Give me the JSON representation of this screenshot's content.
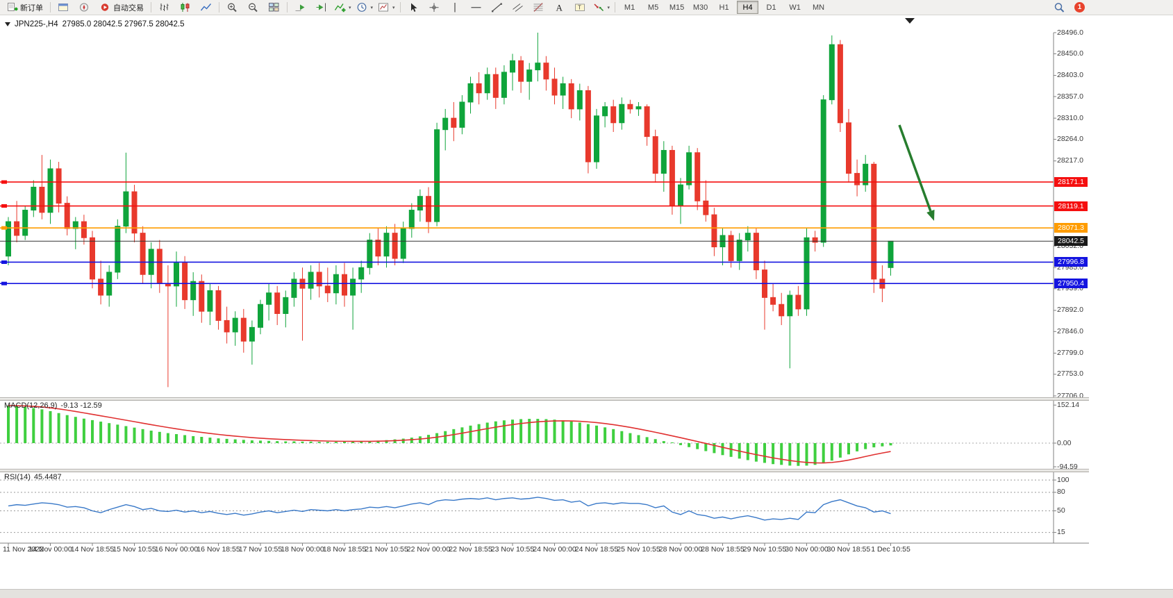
{
  "toolbar": {
    "items": [
      {
        "name": "new-order-button",
        "icon": "new-order-icon",
        "label": "新订单"
      },
      {
        "sep": true
      },
      {
        "name": "market-watch-button",
        "icon": "chart-window-icon"
      },
      {
        "name": "navigator-button",
        "icon": "navigator-icon"
      },
      {
        "name": "auto-trading-button",
        "icon": "auto-trading-icon",
        "label": "自动交易"
      },
      {
        "sep": true
      },
      {
        "name": "bar-chart-button",
        "icon": "bar-chart-icon"
      },
      {
        "name": "candlestick-chart-button",
        "icon": "candlestick-icon"
      },
      {
        "name": "line-chart-button",
        "icon": "line-chart-icon"
      },
      {
        "sep": true
      },
      {
        "name": "zoom-in-button",
        "icon": "zoom-in-icon"
      },
      {
        "name": "zoom-out-button",
        "icon": "zoom-out-icon"
      },
      {
        "name": "tile-windows-button",
        "icon": "tile-windows-icon"
      },
      {
        "sep": true
      },
      {
        "name": "auto-scroll-button",
        "icon": "auto-scroll-icon"
      },
      {
        "name": "chart-shift-button",
        "icon": "chart-shift-icon"
      },
      {
        "name": "indicators-button",
        "icon": "indicators-icon",
        "caret": true
      },
      {
        "name": "periods-button",
        "icon": "periods-icon",
        "caret": true
      },
      {
        "name": "templates-button",
        "icon": "templates-icon",
        "caret": true
      },
      {
        "sep": true
      },
      {
        "name": "cursor-button",
        "icon": "cursor-icon"
      },
      {
        "name": "crosshair-button",
        "icon": "crosshair-icon"
      },
      {
        "name": "vertical-line-button",
        "icon": "vertical-line-icon"
      },
      {
        "name": "horizontal-line-button",
        "icon": "horizontal-line-icon"
      },
      {
        "name": "trendline-button",
        "icon": "trendline-icon"
      },
      {
        "name": "channel-button",
        "icon": "channel-icon"
      },
      {
        "name": "fibonacci-button",
        "icon": "fibonacci-icon"
      },
      {
        "name": "text-button",
        "icon": "text-icon"
      },
      {
        "name": "text-label-button",
        "icon": "text-label-icon"
      },
      {
        "name": "shapes-button",
        "icon": "shapes-icon",
        "caret": true
      },
      {
        "sep": true
      }
    ],
    "timeframes": [
      "M1",
      "M5",
      "M15",
      "M30",
      "H1",
      "H4",
      "D1",
      "W1",
      "MN"
    ],
    "active_timeframe": "H4",
    "badge": "1"
  },
  "chart": {
    "symbol_title": "JPN225-,H4",
    "ohlc_text": "27985.0 28042.5 27967.5 28042.5"
  },
  "levels": [
    {
      "label": "28171.1",
      "price": 28171.1,
      "color": "#f50f0f"
    },
    {
      "label": "28119.1",
      "price": 28119.1,
      "color": "#f50f0f"
    },
    {
      "label": "28071.3",
      "price": 28071.3,
      "color": "#ff9c00"
    },
    {
      "label": "27996.8",
      "price": 27996.8,
      "color": "#1414e0"
    },
    {
      "label": "27950.4",
      "price": 27950.4,
      "color": "#1414e0"
    }
  ],
  "current_price": {
    "label": "28042.5",
    "price": 28042.5,
    "color": "#1a1a1a"
  },
  "price_axis": {
    "labels": [
      "28496.0",
      "28450.0",
      "28403.0",
      "28357.0",
      "28310.0",
      "28264.0",
      "28217.0",
      "28032.0",
      "27985.0",
      "27939.0",
      "27892.0",
      "27846.0",
      "27799.0",
      "27753.0",
      "27706.0"
    ]
  },
  "macd_panel": {
    "title": "MACD(12,26,9)",
    "values": "-9.13 -12.59",
    "axis": [
      {
        "text": "152.14",
        "value": 152.14
      },
      {
        "text": "0.00",
        "value": 0
      },
      {
        "text": "-94.59",
        "value": -94.59
      }
    ]
  },
  "rsi_panel": {
    "title": "RSI(14)",
    "value": "45.4487",
    "axis": [
      {
        "text": "100",
        "value": 100
      },
      {
        "text": "80",
        "value": 80
      },
      {
        "text": "50",
        "value": 50
      },
      {
        "text": "15",
        "value": 15
      }
    ],
    "levels": [
      100,
      80,
      50,
      15
    ]
  },
  "time_axis": {
    "labels": [
      "11 Nov 2022",
      "14 Nov 00:00",
      "14 Nov 18:55",
      "15 Nov 10:55",
      "16 Nov 00:00",
      "16 Nov 18:55",
      "17 Nov 10:55",
      "18 Nov 00:00",
      "18 Nov 18:55",
      "21 Nov 10:55",
      "22 Nov 00:00",
      "22 Nov 18:55",
      "23 Nov 10:55",
      "24 Nov 00:00",
      "24 Nov 18:55",
      "25 Nov 10:55",
      "28 Nov 00:00",
      "28 Nov 18:55",
      "29 Nov 10:55",
      "30 Nov 00:00",
      "30 Nov 18:55",
      "1 Dec 10:55"
    ]
  },
  "annotation_arrow": {
    "color": "#277d2e",
    "from": [
      1295,
      158
    ],
    "to": [
      1345,
      296
    ]
  },
  "colors": {
    "bull": "#0fa43b",
    "bear": "#e8392c",
    "macd_hist": "#3fcf3f",
    "macd_signal": "#e03030",
    "rsi": "#3878c8",
    "axis_line": "#808080",
    "current_line": "#333333"
  },
  "chart_data": {
    "type": "candlestick",
    "symbol": "JPN225-",
    "timeframe": "H4",
    "price_range": [
      27706.0,
      28496.0
    ],
    "candles_ohlc": [
      [
        28010,
        28095,
        27990,
        28085
      ],
      [
        28085,
        28130,
        28040,
        28055
      ],
      [
        28055,
        28120,
        28045,
        28110
      ],
      [
        28110,
        28175,
        28095,
        28160
      ],
      [
        28160,
        28230,
        28090,
        28105
      ],
      [
        28105,
        28220,
        28080,
        28200
      ],
      [
        28200,
        28215,
        28105,
        28125
      ],
      [
        28125,
        28140,
        28055,
        28070
      ],
      [
        28070,
        28095,
        28025,
        28085
      ],
      [
        28085,
        28100,
        28035,
        28050
      ],
      [
        28050,
        28065,
        27940,
        27960
      ],
      [
        27960,
        28000,
        27905,
        27925
      ],
      [
        27925,
        27990,
        27900,
        27975
      ],
      [
        27975,
        28090,
        27960,
        28075
      ],
      [
        28075,
        28235,
        28060,
        28150
      ],
      [
        28150,
        28165,
        28040,
        28060
      ],
      [
        28060,
        28075,
        27950,
        27970
      ],
      [
        27970,
        28040,
        27940,
        28025
      ],
      [
        28025,
        28045,
        27930,
        27950
      ],
      [
        27950,
        27990,
        27725,
        27945
      ],
      [
        27945,
        28020,
        27900,
        27995
      ],
      [
        27995,
        28010,
        27895,
        27915
      ],
      [
        27915,
        27975,
        27880,
        27955
      ],
      [
        27955,
        27970,
        27865,
        27890
      ],
      [
        27890,
        27950,
        27860,
        27935
      ],
      [
        27935,
        27945,
        27850,
        27870
      ],
      [
        27870,
        27900,
        27820,
        27845
      ],
      [
        27845,
        27890,
        27815,
        27875
      ],
      [
        27875,
        27895,
        27800,
        27825
      ],
      [
        27825,
        27870,
        27774,
        27855
      ],
      [
        27855,
        27915,
        27840,
        27905
      ],
      [
        27905,
        27950,
        27870,
        27930
      ],
      [
        27930,
        27945,
        27860,
        27885
      ],
      [
        27885,
        27935,
        27855,
        27920
      ],
      [
        27920,
        27975,
        27900,
        27960
      ],
      [
        27960,
        27985,
        27826,
        27940
      ],
      [
        27940,
        27990,
        27915,
        27975
      ],
      [
        27975,
        27995,
        27920,
        27945
      ],
      [
        27945,
        27985,
        27910,
        27930
      ],
      [
        27930,
        27990,
        27905,
        27970
      ],
      [
        27970,
        27995,
        27900,
        27925
      ],
      [
        27925,
        27985,
        27850,
        27960
      ],
      [
        27960,
        28000,
        27930,
        27985
      ],
      [
        27985,
        28060,
        27970,
        28045
      ],
      [
        28045,
        28070,
        27990,
        28010
      ],
      [
        28010,
        28075,
        27985,
        28060
      ],
      [
        28060,
        28080,
        27990,
        28005
      ],
      [
        28005,
        28085,
        27995,
        28070
      ],
      [
        28070,
        28125,
        28050,
        28110
      ],
      [
        28110,
        28155,
        28085,
        28140
      ],
      [
        28140,
        28160,
        28060,
        28085
      ],
      [
        28085,
        28300,
        28075,
        28285
      ],
      [
        28285,
        28330,
        28240,
        28310
      ],
      [
        28310,
        28345,
        28260,
        28290
      ],
      [
        28290,
        28360,
        28275,
        28345
      ],
      [
        28345,
        28400,
        28320,
        28385
      ],
      [
        28385,
        28410,
        28340,
        28365
      ],
      [
        28365,
        28420,
        28350,
        28405
      ],
      [
        28405,
        28420,
        28330,
        28355
      ],
      [
        28355,
        28425,
        28340,
        28410
      ],
      [
        28410,
        28450,
        28370,
        28435
      ],
      [
        28435,
        28445,
        28365,
        28390
      ],
      [
        28390,
        28430,
        28350,
        28415
      ],
      [
        28415,
        28496,
        28390,
        28430
      ],
      [
        28430,
        28445,
        28370,
        28395
      ],
      [
        28395,
        28420,
        28340,
        28360
      ],
      [
        28360,
        28400,
        28330,
        28385
      ],
      [
        28385,
        28395,
        28310,
        28330
      ],
      [
        28330,
        28385,
        28305,
        28370
      ],
      [
        28370,
        28380,
        28190,
        28215
      ],
      [
        28215,
        28330,
        28200,
        28315
      ],
      [
        28315,
        28345,
        28290,
        28335
      ],
      [
        28335,
        28350,
        28280,
        28300
      ],
      [
        28300,
        28355,
        28285,
        28340
      ],
      [
        28340,
        28350,
        28320,
        28330
      ],
      [
        28330,
        28345,
        28315,
        28335
      ],
      [
        28335,
        28340,
        28250,
        28270
      ],
      [
        28270,
        28285,
        28170,
        28190
      ],
      [
        28190,
        28260,
        28150,
        28240
      ],
      [
        28240,
        28250,
        28100,
        28120
      ],
      [
        28120,
        28180,
        28080,
        28165
      ],
      [
        28165,
        28250,
        28155,
        28235
      ],
      [
        28235,
        28245,
        28110,
        28130
      ],
      [
        28130,
        28175,
        28085,
        28100
      ],
      [
        28100,
        28115,
        28010,
        28030
      ],
      [
        28030,
        28070,
        27990,
        28055
      ],
      [
        28055,
        28065,
        27985,
        28000
      ],
      [
        28000,
        28060,
        27980,
        28045
      ],
      [
        28045,
        28075,
        28020,
        28060
      ],
      [
        28060,
        28070,
        27960,
        27980
      ],
      [
        27980,
        28000,
        27850,
        27920
      ],
      [
        27920,
        27950,
        27890,
        27905
      ],
      [
        27905,
        27930,
        27860,
        27880
      ],
      [
        27880,
        27935,
        27766,
        27925
      ],
      [
        27925,
        27945,
        27880,
        27895
      ],
      [
        27895,
        28070,
        27880,
        28050
      ],
      [
        28050,
        28065,
        28020,
        28040
      ],
      [
        28040,
        28360,
        28030,
        28350
      ],
      [
        28350,
        28490,
        28340,
        28470
      ],
      [
        28470,
        28480,
        28280,
        28300
      ],
      [
        28300,
        28330,
        28170,
        28190
      ],
      [
        28190,
        28220,
        28140,
        28165
      ],
      [
        28165,
        28230,
        28150,
        28210
      ],
      [
        28210,
        28215,
        27930,
        27960
      ],
      [
        27960,
        27990,
        27910,
        27940
      ],
      [
        27985,
        28042.5,
        27967.5,
        28042.5
      ]
    ],
    "macd": {
      "params": "12,26,9",
      "current_values": [
        -9.13,
        -12.59
      ],
      "range": [
        -94.59,
        152.14
      ],
      "histogram": [
        150,
        148,
        145,
        140,
        135,
        128,
        120,
        112,
        105,
        98,
        92,
        86,
        80,
        74,
        68,
        62,
        56,
        50,
        45,
        40,
        36,
        32,
        28,
        25,
        22,
        19,
        17,
        15,
        13,
        11,
        10,
        9,
        8,
        7,
        7,
        6,
        6,
        5,
        5,
        5,
        6,
        6,
        7,
        8,
        10,
        12,
        15,
        18,
        22,
        27,
        33,
        40,
        48,
        56,
        63,
        70,
        76,
        82,
        87,
        91,
        94,
        96,
        97,
        97,
        96,
        94,
        91,
        87,
        82,
        76,
        70,
        63,
        56,
        48,
        40,
        32,
        24,
        16,
        8,
        0,
        -8,
        -16,
        -24,
        -32,
        -40,
        -48,
        -55,
        -62,
        -68,
        -74,
        -79,
        -84,
        -87,
        -90,
        -91,
        -90,
        -87,
        -80,
        -70,
        -58,
        -45,
        -33,
        -24,
        -17,
        -13,
        -9.13
      ]
    },
    "rsi": {
      "period": 14,
      "current": 45.4487,
      "values": [
        58,
        60,
        59,
        61,
        63,
        62,
        60,
        56,
        57,
        55,
        50,
        47,
        52,
        56,
        60,
        57,
        52,
        54,
        50,
        49,
        51,
        48,
        50,
        47,
        49,
        46,
        44,
        46,
        43,
        45,
        48,
        50,
        47,
        49,
        51,
        49,
        52,
        51,
        50,
        52,
        50,
        52,
        53,
        56,
        55,
        57,
        55,
        58,
        61,
        63,
        60,
        66,
        68,
        67,
        69,
        70,
        69,
        71,
        68,
        70,
        71,
        69,
        70,
        72,
        70,
        67,
        68,
        64,
        66,
        58,
        62,
        63,
        61,
        63,
        62,
        62,
        60,
        55,
        58,
        48,
        44,
        50,
        44,
        42,
        38,
        40,
        37,
        40,
        42,
        39,
        35,
        37,
        36,
        38,
        36,
        48,
        47,
        60,
        65,
        68,
        63,
        58,
        55,
        48,
        50,
        45.45
      ]
    }
  }
}
